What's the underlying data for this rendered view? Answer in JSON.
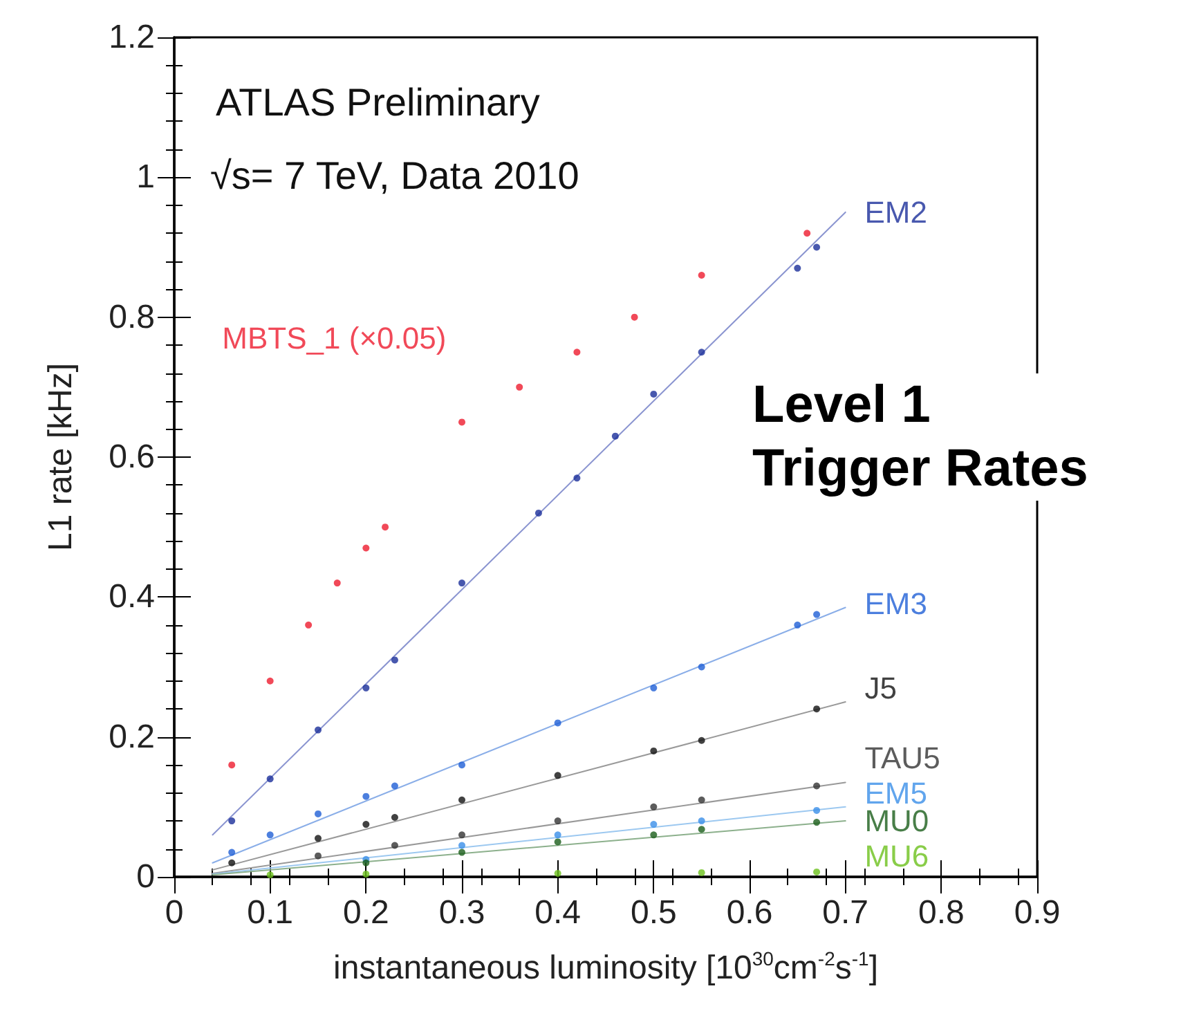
{
  "chart_data": {
    "type": "scatter",
    "title": "Level 1 Trigger Rates",
    "xlabel": "instantaneous luminosity [10$^{30}$cm$^{-2}$s$^{-1}$]",
    "ylabel": "L1 rate [kHz]",
    "annotations": [
      "ATLAS Preliminary",
      "√s= 7 TeV, Data 2010"
    ],
    "xlim": [
      0,
      0.9
    ],
    "xticks": [
      0,
      0.1,
      0.2,
      0.3,
      0.4,
      0.5,
      0.6,
      0.7,
      0.8,
      0.9
    ],
    "ylim": [
      0,
      1.2
    ],
    "yticks": [
      0,
      0.2,
      0.4,
      0.6,
      0.8,
      1,
      1.2
    ],
    "grid": false,
    "legend": false,
    "marker": "circle",
    "series": [
      {
        "name": "MBTS_1 (×0.05)",
        "color": "#ee1c2e",
        "x": [
          0.06,
          0.1,
          0.14,
          0.17,
          0.2,
          0.22,
          0.3,
          0.36,
          0.42,
          0.48,
          0.55,
          0.66
        ],
        "values": [
          0.16,
          0.28,
          0.36,
          0.42,
          0.47,
          0.5,
          0.65,
          0.7,
          0.75,
          0.8,
          0.86,
          0.92
        ]
      },
      {
        "name": "EM2",
        "color": "#1a2e9a",
        "x": [
          0.06,
          0.1,
          0.15,
          0.2,
          0.23,
          0.3,
          0.38,
          0.42,
          0.46,
          0.5,
          0.55,
          0.65,
          0.67
        ],
        "values": [
          0.08,
          0.14,
          0.21,
          0.27,
          0.31,
          0.42,
          0.52,
          0.57,
          0.63,
          0.69,
          0.75,
          0.87,
          0.9
        ]
      },
      {
        "name": "EM3",
        "color": "#1f5fd6",
        "x": [
          0.06,
          0.1,
          0.15,
          0.2,
          0.23,
          0.3,
          0.4,
          0.5,
          0.55,
          0.65,
          0.67
        ],
        "values": [
          0.035,
          0.06,
          0.09,
          0.115,
          0.13,
          0.16,
          0.22,
          0.27,
          0.3,
          0.36,
          0.375
        ]
      },
      {
        "name": "J5",
        "color": "#111111",
        "x": [
          0.06,
          0.15,
          0.2,
          0.23,
          0.3,
          0.4,
          0.5,
          0.55,
          0.67
        ],
        "values": [
          0.02,
          0.055,
          0.075,
          0.085,
          0.11,
          0.145,
          0.18,
          0.195,
          0.24
        ]
      },
      {
        "name": "TAU5",
        "color": "#333333",
        "x": [
          0.15,
          0.23,
          0.3,
          0.4,
          0.5,
          0.55,
          0.67
        ],
        "values": [
          0.03,
          0.045,
          0.06,
          0.08,
          0.1,
          0.11,
          0.13
        ]
      },
      {
        "name": "EM5",
        "color": "#3a8fe8",
        "x": [
          0.2,
          0.3,
          0.4,
          0.5,
          0.55,
          0.67
        ],
        "values": [
          0.025,
          0.045,
          0.06,
          0.075,
          0.08,
          0.095
        ]
      },
      {
        "name": "MU0",
        "color": "#1a5e1a",
        "x": [
          0.2,
          0.3,
          0.4,
          0.5,
          0.55,
          0.67
        ],
        "values": [
          0.02,
          0.035,
          0.05,
          0.06,
          0.068,
          0.078
        ]
      },
      {
        "name": "MU6",
        "color": "#6cc11c",
        "x": [
          0.1,
          0.2,
          0.4,
          0.55,
          0.67
        ],
        "values": [
          0.003,
          0.004,
          0.005,
          0.006,
          0.007
        ]
      },
      {
        "type": "line",
        "marker": "none",
        "color": "#8a94d0",
        "x": [
          0.04,
          0.7
        ],
        "values": [
          0.06,
          0.95
        ]
      },
      {
        "type": "line",
        "marker": "none",
        "color": "#8aaee8",
        "x": [
          0.04,
          0.7
        ],
        "values": [
          0.02,
          0.385
        ]
      },
      {
        "type": "line",
        "marker": "none",
        "color": "#999999",
        "x": [
          0.04,
          0.7
        ],
        "values": [
          0.01,
          0.25
        ]
      },
      {
        "type": "line",
        "marker": "none",
        "color": "#999999",
        "x": [
          0.04,
          0.7
        ],
        "values": [
          0.005,
          0.135
        ]
      },
      {
        "type": "line",
        "marker": "none",
        "color": "#9cc8f0",
        "x": [
          0.04,
          0.7
        ],
        "values": [
          0.004,
          0.1
        ]
      },
      {
        "type": "line",
        "marker": "none",
        "color": "#8cb08c",
        "x": [
          0.04,
          0.7
        ],
        "values": [
          0.003,
          0.08
        ]
      }
    ]
  }
}
